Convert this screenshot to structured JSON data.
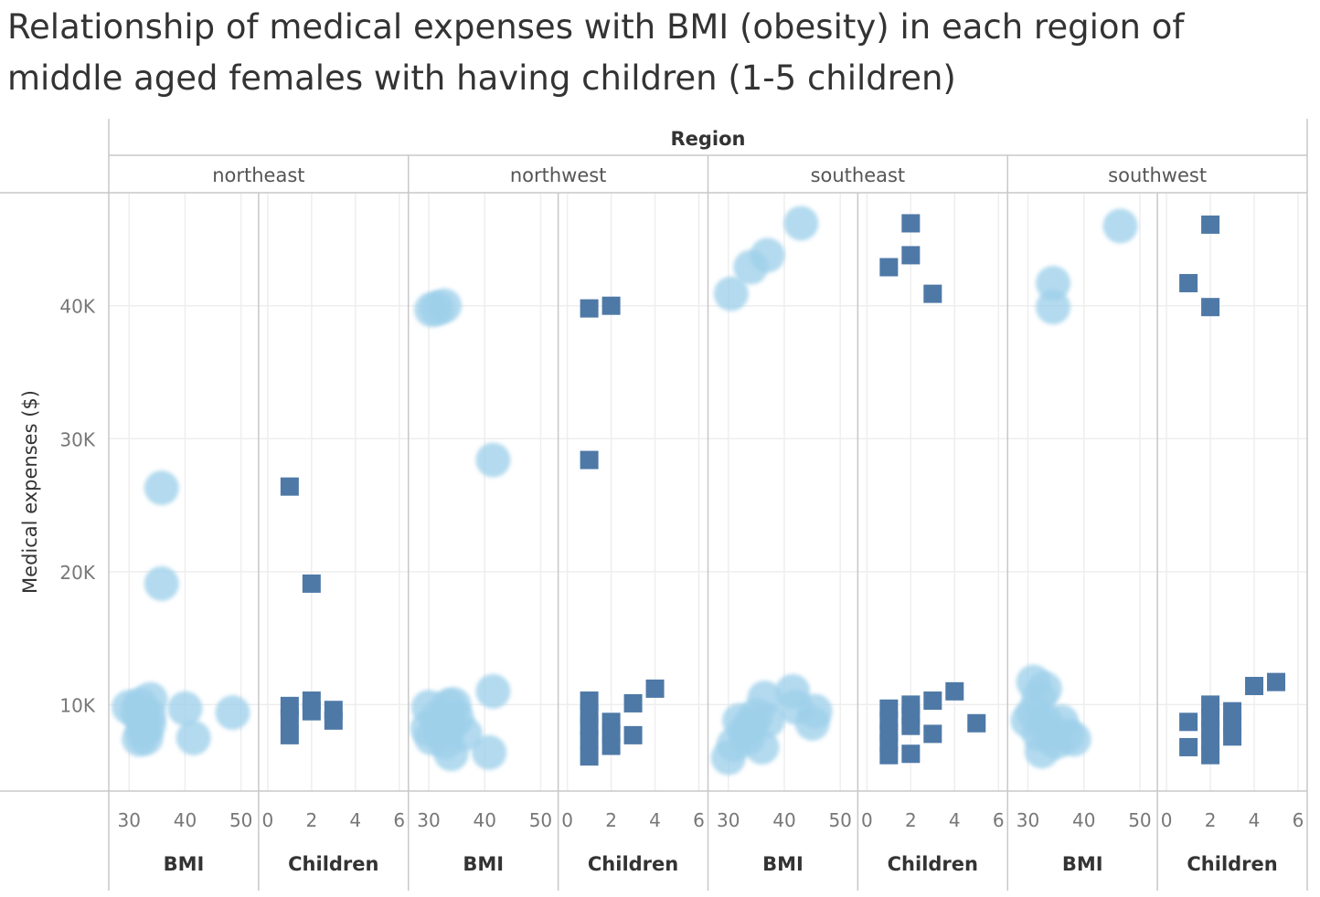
{
  "title_lines": [
    "Relationship of medical expenses with BMI (obesity) in each region of",
    "middle aged females with having children (1-5 children)"
  ],
  "colors": {
    "bmi_circle": "#9ecfea",
    "bmi_circle_dense": "#4f8fc4",
    "children_square": "#4e79a7",
    "gridline": "#eeeeee",
    "divider": "#c8c8c8"
  },
  "chart_data": {
    "type": "scatter",
    "title": "Relationship of medical expenses with BMI (obesity) in each region of middle aged females with having children (1-5 children)",
    "column_header": "Region",
    "ylabel": "Medical expenses ($)",
    "ylim": [
      3500,
      48500
    ],
    "y_ticks": [
      {
        "value": 10000,
        "label": "10K"
      },
      {
        "value": 20000,
        "label": "20K"
      },
      {
        "value": 30000,
        "label": "30K"
      },
      {
        "value": 40000,
        "label": "40K"
      }
    ],
    "bmi_axis": {
      "label": "BMI",
      "range": [
        28,
        51.5
      ],
      "ticks": [
        30,
        40,
        50
      ]
    },
    "children_axis": {
      "label": "Children",
      "range": [
        0,
        6
      ],
      "ticks": [
        0,
        2,
        4,
        6
      ]
    },
    "grid": true,
    "panels": [
      {
        "region": "northeast",
        "bmi_points": [
          [
            30,
            9800
          ],
          [
            31.5,
            9500
          ],
          [
            32,
            10000
          ],
          [
            32.2,
            9000
          ],
          [
            32.5,
            8000
          ],
          [
            31.8,
            7400
          ],
          [
            33,
            7500
          ],
          [
            33.5,
            9200
          ],
          [
            33.5,
            8500
          ],
          [
            33.8,
            10400
          ],
          [
            35.8,
            26300
          ],
          [
            35.8,
            19100
          ],
          [
            40,
            9700
          ],
          [
            41.5,
            7500
          ],
          [
            48.5,
            9400
          ]
        ],
        "children_points": [
          [
            1,
            26400
          ],
          [
            2,
            19100
          ],
          [
            1,
            9900
          ],
          [
            1,
            9000
          ],
          [
            1,
            7700
          ],
          [
            2,
            10300
          ],
          [
            2,
            9500
          ],
          [
            3,
            9600
          ],
          [
            3,
            8800
          ]
        ]
      },
      {
        "region": "northwest",
        "bmi_points": [
          [
            30.5,
            39700
          ],
          [
            31.5,
            39800
          ],
          [
            32.8,
            40000
          ],
          [
            41.5,
            28400
          ],
          [
            41.5,
            11000
          ],
          [
            30,
            9800
          ],
          [
            29.8,
            8200
          ],
          [
            30.5,
            7500
          ],
          [
            31.5,
            9000
          ],
          [
            32,
            8000
          ],
          [
            33,
            7200
          ],
          [
            33.5,
            9900
          ],
          [
            34,
            8500
          ],
          [
            34.5,
            10000
          ],
          [
            34,
            6300
          ],
          [
            35,
            9000
          ],
          [
            36.5,
            7800
          ],
          [
            40.8,
            6400
          ]
        ],
        "children_points": [
          [
            1,
            39800
          ],
          [
            2,
            40000
          ],
          [
            1,
            28400
          ],
          [
            1,
            10300
          ],
          [
            1,
            9300
          ],
          [
            1,
            8400
          ],
          [
            1,
            7300
          ],
          [
            1,
            6100
          ],
          [
            2,
            8700
          ],
          [
            2,
            7800
          ],
          [
            2,
            6900
          ],
          [
            3,
            10100
          ],
          [
            3,
            7700
          ],
          [
            4,
            11200
          ]
        ]
      },
      {
        "region": "southeast",
        "bmi_points": [
          [
            30.5,
            40900
          ],
          [
            34,
            42900
          ],
          [
            37,
            43800
          ],
          [
            43,
            46200
          ],
          [
            30,
            6000
          ],
          [
            31,
            7000
          ],
          [
            32,
            8800
          ],
          [
            33,
            8000
          ],
          [
            33.5,
            7500
          ],
          [
            34,
            8500
          ],
          [
            35,
            9200
          ],
          [
            36,
            6800
          ],
          [
            36.5,
            10500
          ],
          [
            37,
            8800
          ],
          [
            41.5,
            11000
          ],
          [
            42,
            9800
          ],
          [
            45,
            8600
          ],
          [
            45.5,
            9500
          ]
        ],
        "children_points": [
          [
            1,
            42900
          ],
          [
            2,
            46200
          ],
          [
            2,
            43800
          ],
          [
            3,
            40900
          ],
          [
            1,
            9700
          ],
          [
            1,
            8800
          ],
          [
            1,
            7900
          ],
          [
            1,
            7100
          ],
          [
            1,
            6200
          ],
          [
            2,
            10000
          ],
          [
            2,
            9200
          ],
          [
            2,
            8400
          ],
          [
            2,
            6300
          ],
          [
            3,
            10300
          ],
          [
            3,
            7800
          ],
          [
            4,
            11000
          ],
          [
            5,
            8600
          ]
        ]
      },
      {
        "region": "southwest",
        "bmi_points": [
          [
            46.5,
            46000
          ],
          [
            34.5,
            41700
          ],
          [
            34.5,
            39900
          ],
          [
            31,
            11700
          ],
          [
            32,
            10500
          ],
          [
            33,
            11200
          ],
          [
            30,
            8800
          ],
          [
            31,
            9400
          ],
          [
            32,
            7800
          ],
          [
            32.5,
            6500
          ],
          [
            33,
            8800
          ],
          [
            34,
            7900
          ],
          [
            35,
            7200
          ],
          [
            36,
            8700
          ],
          [
            37,
            7700
          ],
          [
            38.2,
            7400
          ]
        ],
        "children_points": [
          [
            2,
            46100
          ],
          [
            1,
            41700
          ],
          [
            2,
            39900
          ],
          [
            1,
            8700
          ],
          [
            1,
            6800
          ],
          [
            2,
            10000
          ],
          [
            2,
            9000
          ],
          [
            2,
            8100
          ],
          [
            2,
            7200
          ],
          [
            2,
            6200
          ],
          [
            3,
            9500
          ],
          [
            3,
            8500
          ],
          [
            3,
            7600
          ],
          [
            4,
            11400
          ],
          [
            5,
            11700
          ]
        ]
      }
    ]
  }
}
